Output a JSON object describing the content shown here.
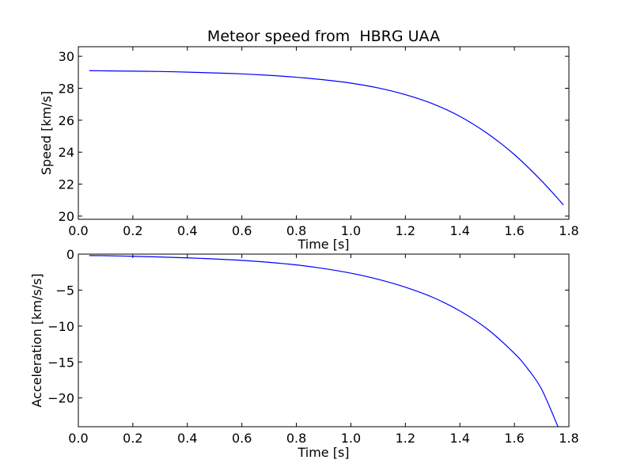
{
  "chart_data": [
    {
      "type": "line",
      "title": "Meteor speed from  HBRG UAA",
      "xlabel": "Time [s]",
      "ylabel": "Speed [km/s]",
      "xlim": [
        0.0,
        1.8
      ],
      "ylim": [
        19.8,
        30.6
      ],
      "xticks": [
        "0.0",
        "0.2",
        "0.4",
        "0.6",
        "0.8",
        "1.0",
        "1.2",
        "1.4",
        "1.6",
        "1.8"
      ],
      "yticks": [
        "20",
        "22",
        "24",
        "26",
        "28",
        "30"
      ],
      "grid": false,
      "line_color": "#0000ff",
      "series": [
        {
          "x": [
            0.04,
            0.1,
            0.2,
            0.3,
            0.4,
            0.5,
            0.6,
            0.7,
            0.8,
            0.9,
            1.0,
            1.1,
            1.2,
            1.3,
            1.4,
            1.5,
            1.6,
            1.7,
            1.78
          ],
          "values": [
            29.1,
            29.09,
            29.07,
            29.05,
            29.01,
            28.96,
            28.9,
            28.81,
            28.69,
            28.53,
            28.32,
            28.02,
            27.6,
            27.03,
            26.24,
            25.18,
            23.85,
            22.2,
            20.7
          ]
        }
      ]
    },
    {
      "type": "line",
      "title": "",
      "xlabel": "Time [s]",
      "ylabel": "Acceleration [km/s/s]",
      "xlim": [
        0.0,
        1.8
      ],
      "ylim": [
        -24.0,
        0.0
      ],
      "xticks": [
        "0.0",
        "0.2",
        "0.4",
        "0.6",
        "0.8",
        "1.0",
        "1.2",
        "1.4",
        "1.6",
        "1.8"
      ],
      "yticks": [
        "0",
        "−5",
        "−10",
        "−15",
        "−20"
      ],
      "grid": false,
      "line_color": "#0000ff",
      "series": [
        {
          "x": [
            0.04,
            0.1,
            0.2,
            0.3,
            0.4,
            0.5,
            0.6,
            0.7,
            0.8,
            0.9,
            1.0,
            1.1,
            1.2,
            1.3,
            1.4,
            1.5,
            1.6,
            1.65,
            1.7,
            1.76
          ],
          "values": [
            -0.2,
            -0.22,
            -0.3,
            -0.4,
            -0.52,
            -0.67,
            -0.87,
            -1.14,
            -1.5,
            -2.0,
            -2.65,
            -3.5,
            -4.6,
            -6.0,
            -7.9,
            -10.4,
            -13.8,
            -16.0,
            -18.8,
            -24.0
          ]
        }
      ]
    }
  ]
}
